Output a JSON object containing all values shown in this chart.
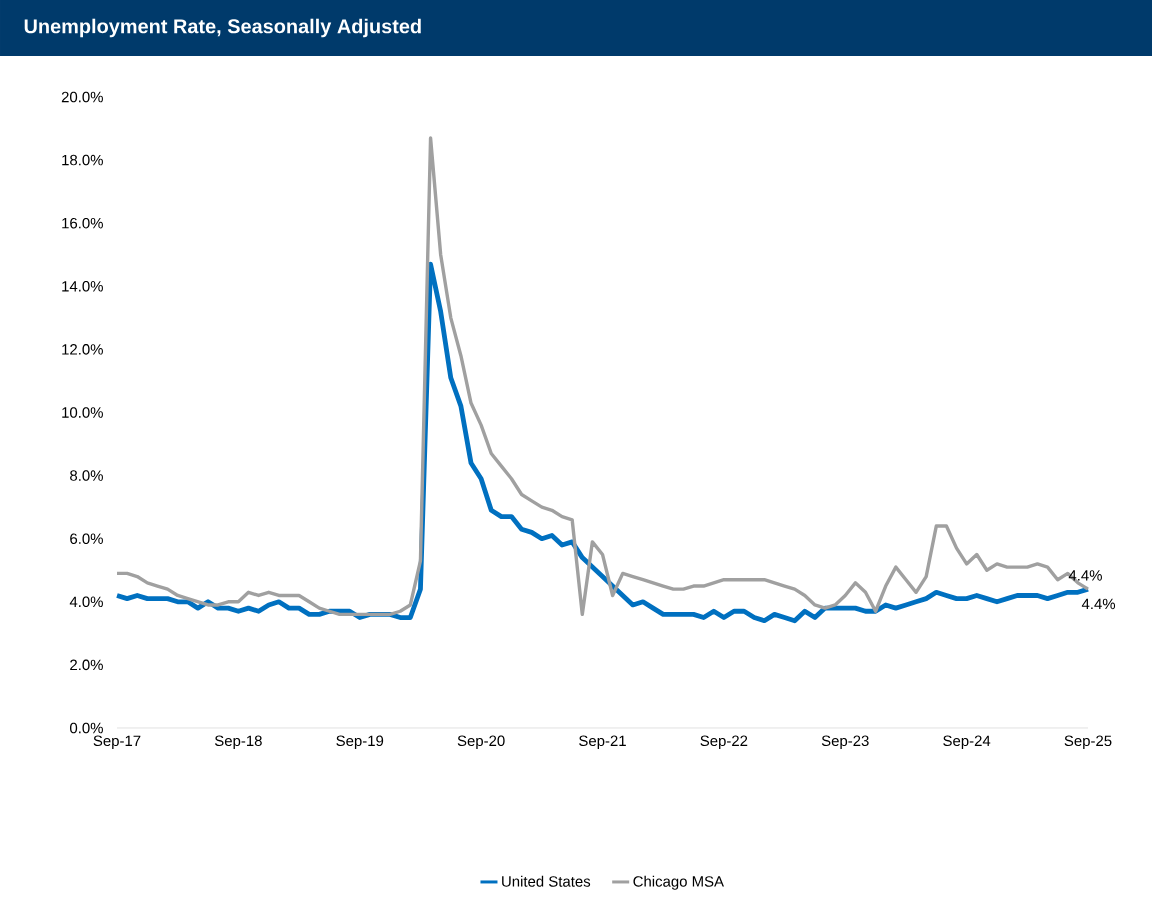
{
  "chart_data": {
    "type": "line",
    "title": "Unemployment Rate, Seasonally Adjusted",
    "x": [
      "2017-09",
      "2017-10",
      "2017-11",
      "2017-12",
      "2018-01",
      "2018-02",
      "2018-03",
      "2018-04",
      "2018-05",
      "2018-06",
      "2018-07",
      "2018-08",
      "2018-09",
      "2018-10",
      "2018-11",
      "2018-12",
      "2019-01",
      "2019-02",
      "2019-03",
      "2019-04",
      "2019-05",
      "2019-06",
      "2019-07",
      "2019-08",
      "2019-09",
      "2019-10",
      "2019-11",
      "2019-12",
      "2020-01",
      "2020-02",
      "2020-03",
      "2020-04",
      "2020-05",
      "2020-06",
      "2020-07",
      "2020-08",
      "2020-09",
      "2020-10",
      "2020-11",
      "2020-12",
      "2021-01",
      "2021-02",
      "2021-03",
      "2021-04",
      "2021-05",
      "2021-06",
      "2021-07",
      "2021-08",
      "2021-09",
      "2021-10",
      "2021-11",
      "2021-12",
      "2022-01",
      "2022-02",
      "2022-03",
      "2022-04",
      "2022-05",
      "2022-06",
      "2022-07",
      "2022-08",
      "2022-09",
      "2022-10",
      "2022-11",
      "2022-12",
      "2023-01",
      "2023-02",
      "2023-03",
      "2023-04",
      "2023-05",
      "2023-06",
      "2023-07",
      "2023-08",
      "2023-09",
      "2023-10",
      "2023-11",
      "2023-12",
      "2024-01",
      "2024-02",
      "2024-03",
      "2024-04",
      "2024-05",
      "2024-06",
      "2024-07",
      "2024-08",
      "2024-09",
      "2024-10",
      "2024-11",
      "2024-12",
      "2025-01",
      "2025-02",
      "2025-03",
      "2025-04",
      "2025-05",
      "2025-06",
      "2025-07",
      "2025-08",
      "2025-09"
    ],
    "series": [
      {
        "name": "United States",
        "color": "#0070c0",
        "values": [
          4.2,
          4.1,
          4.2,
          4.1,
          4.1,
          4.1,
          4.0,
          4.0,
          3.8,
          4.0,
          3.8,
          3.8,
          3.7,
          3.8,
          3.7,
          3.9,
          4.0,
          3.8,
          3.8,
          3.6,
          3.6,
          3.7,
          3.7,
          3.7,
          3.5,
          3.6,
          3.6,
          3.6,
          3.5,
          3.5,
          4.4,
          14.7,
          13.2,
          11.1,
          10.2,
          8.4,
          7.9,
          6.9,
          6.7,
          6.7,
          6.3,
          6.2,
          6.0,
          6.1,
          5.8,
          5.9,
          5.4,
          5.1,
          4.8,
          4.5,
          4.2,
          3.9,
          4.0,
          3.8,
          3.6,
          3.6,
          3.6,
          3.6,
          3.5,
          3.7,
          3.5,
          3.7,
          3.7,
          3.5,
          3.4,
          3.6,
          3.5,
          3.4,
          3.7,
          3.5,
          3.8,
          3.8,
          3.8,
          3.8,
          3.7,
          3.7,
          3.9,
          3.8,
          3.9,
          4.0,
          4.1,
          4.3,
          4.2,
          4.1,
          4.1,
          4.2,
          4.1,
          4.0,
          4.1,
          4.2,
          4.2,
          4.2,
          4.1,
          4.2,
          4.3,
          4.3,
          4.4
        ]
      },
      {
        "name": "Chicago MSA",
        "color": "#a0a0a0",
        "values": [
          4.9,
          4.9,
          4.8,
          4.6,
          4.5,
          4.4,
          4.2,
          4.1,
          4.0,
          3.9,
          3.9,
          4.0,
          4.0,
          4.3,
          4.2,
          4.3,
          4.2,
          4.2,
          4.2,
          4.0,
          3.8,
          3.7,
          3.6,
          3.6,
          3.6,
          3.6,
          3.6,
          3.6,
          3.7,
          3.9,
          5.3,
          18.7,
          15.0,
          13.0,
          11.8,
          10.3,
          9.6,
          8.7,
          8.3,
          7.9,
          7.4,
          7.2,
          7.0,
          6.9,
          6.7,
          6.6,
          3.6,
          5.9,
          5.5,
          4.2,
          4.9,
          4.8,
          4.7,
          4.6,
          4.5,
          4.4,
          4.4,
          4.5,
          4.5,
          4.6,
          4.7,
          4.7,
          4.7,
          4.7,
          4.7,
          4.6,
          4.5,
          4.4,
          4.2,
          3.9,
          3.8,
          3.9,
          4.2,
          4.6,
          4.3,
          3.7,
          4.5,
          5.1,
          4.7,
          4.3,
          4.8,
          6.4,
          6.4,
          5.7,
          5.2,
          5.5,
          5.0,
          5.2,
          5.1,
          5.1,
          5.1,
          5.2,
          5.1,
          4.7,
          4.9,
          4.6,
          4.4
        ]
      }
    ],
    "xlim": [
      "2017-09",
      "2025-09"
    ],
    "xticks": [
      {
        "value": "2017-09",
        "label": "Sep-17"
      },
      {
        "value": "2018-09",
        "label": "Sep-18"
      },
      {
        "value": "2019-09",
        "label": "Sep-19"
      },
      {
        "value": "2020-09",
        "label": "Sep-20"
      },
      {
        "value": "2021-09",
        "label": "Sep-21"
      },
      {
        "value": "2022-09",
        "label": "Sep-22"
      },
      {
        "value": "2023-09",
        "label": "Sep-23"
      },
      {
        "value": "2024-09",
        "label": "Sep-24"
      },
      {
        "value": "2025-09",
        "label": "Sep-25"
      }
    ],
    "ylim": [
      0,
      20
    ],
    "yticks": [
      {
        "value": 0,
        "label": "0.0%"
      },
      {
        "value": 2,
        "label": "2.0%"
      },
      {
        "value": 4,
        "label": "4.0%"
      },
      {
        "value": 6,
        "label": "6.0%"
      },
      {
        "value": 8,
        "label": "8.0%"
      },
      {
        "value": 10,
        "label": "10.0%"
      },
      {
        "value": 12,
        "label": "12.0%"
      },
      {
        "value": 14,
        "label": "14.0%"
      },
      {
        "value": 16,
        "label": "16.0%"
      },
      {
        "value": 18,
        "label": "18.0%"
      },
      {
        "value": 20,
        "label": "20.0%"
      }
    ],
    "annotations": [
      {
        "text": "4.4%",
        "x": "2025-09",
        "y": 4.4
      },
      {
        "text": "4.4%",
        "x": "2025-09",
        "y": 4.4
      }
    ],
    "grid": false,
    "legend": "bottom",
    "marker": "none",
    "line_style": "solid"
  }
}
